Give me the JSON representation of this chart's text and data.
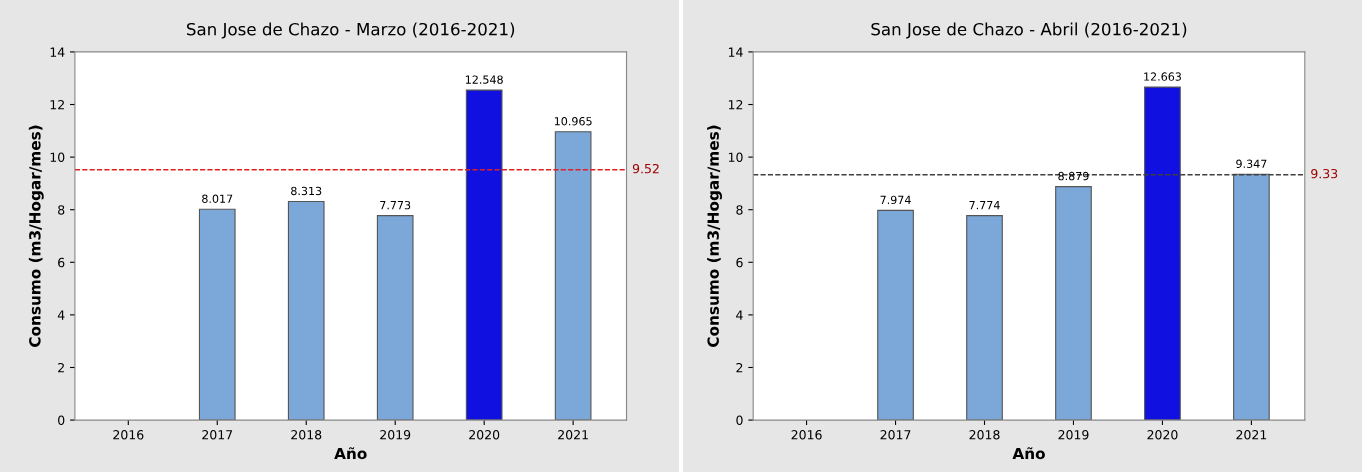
{
  "chart_data": [
    {
      "type": "bar",
      "title": "San Jose de Chazo - Marzo (2016-2021)",
      "xlabel": "Año",
      "ylabel": "Consumo (m3/Hogar/mes)",
      "categories": [
        "2016",
        "2017",
        "2018",
        "2019",
        "2020",
        "2021"
      ],
      "values": [
        null,
        8.017,
        8.313,
        7.773,
        12.548,
        10.965
      ],
      "colors": [
        "#7ba7d9",
        "#7ba7d9",
        "#7ba7d9",
        "#7ba7d9",
        "#1010e0",
        "#7ba7d9"
      ],
      "ylim": [
        0,
        14
      ],
      "yticks": [
        0,
        2,
        4,
        6,
        8,
        10,
        12,
        14
      ],
      "data_labels": true,
      "grid": false,
      "legend": false,
      "ref_lines": [
        {
          "axis": "y",
          "value": 9.52,
          "label": "9.52",
          "color": "#e02020",
          "line_style": "dashed"
        }
      ]
    },
    {
      "type": "bar",
      "title": "San Jose de Chazo - Abril (2016-2021)",
      "xlabel": "Año",
      "ylabel": "Consumo (m3/Hogar/mes)",
      "categories": [
        "2016",
        "2017",
        "2018",
        "2019",
        "2020",
        "2021"
      ],
      "values": [
        null,
        7.974,
        7.774,
        8.879,
        12.663,
        9.347
      ],
      "colors": [
        "#7ba7d9",
        "#7ba7d9",
        "#7ba7d9",
        "#7ba7d9",
        "#1010e0",
        "#7ba7d9"
      ],
      "ylim": [
        0,
        14
      ],
      "yticks": [
        0,
        2,
        4,
        6,
        8,
        10,
        12,
        14
      ],
      "data_labels": true,
      "grid": false,
      "legend": false,
      "ref_lines": [
        {
          "axis": "y",
          "value": 9.33,
          "label": "9.33",
          "color": "#404040",
          "line_style": "dashed"
        }
      ]
    }
  ]
}
